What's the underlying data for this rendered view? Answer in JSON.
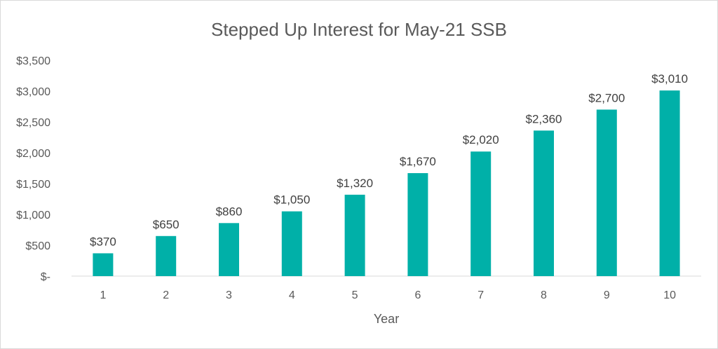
{
  "chart_data": {
    "type": "bar",
    "title": "Stepped Up Interest for May-21 SSB",
    "xlabel": "Year",
    "ylabel": "",
    "categories": [
      "1",
      "2",
      "3",
      "4",
      "5",
      "6",
      "7",
      "8",
      "9",
      "10"
    ],
    "series": [
      {
        "values": [
          370,
          650,
          860,
          1050,
          1320,
          1670,
          2020,
          2360,
          2700,
          3010
        ],
        "data_labels": [
          "$370",
          "$650",
          "$860",
          "$1,050",
          "$1,320",
          "$1,670",
          "$2,020",
          "$2,360",
          "$2,700",
          "$3,010"
        ],
        "color": "#00b0a8"
      }
    ],
    "ylim": [
      0,
      3500
    ],
    "y_ticks": [
      0,
      500,
      1000,
      1500,
      2000,
      2500,
      3000,
      3500
    ],
    "y_tick_labels": [
      "$-",
      "$500",
      "$1,000",
      "$1,500",
      "$2,000",
      "$2,500",
      "$3,000",
      "$3,500"
    ],
    "grid": false,
    "legend": "none"
  }
}
